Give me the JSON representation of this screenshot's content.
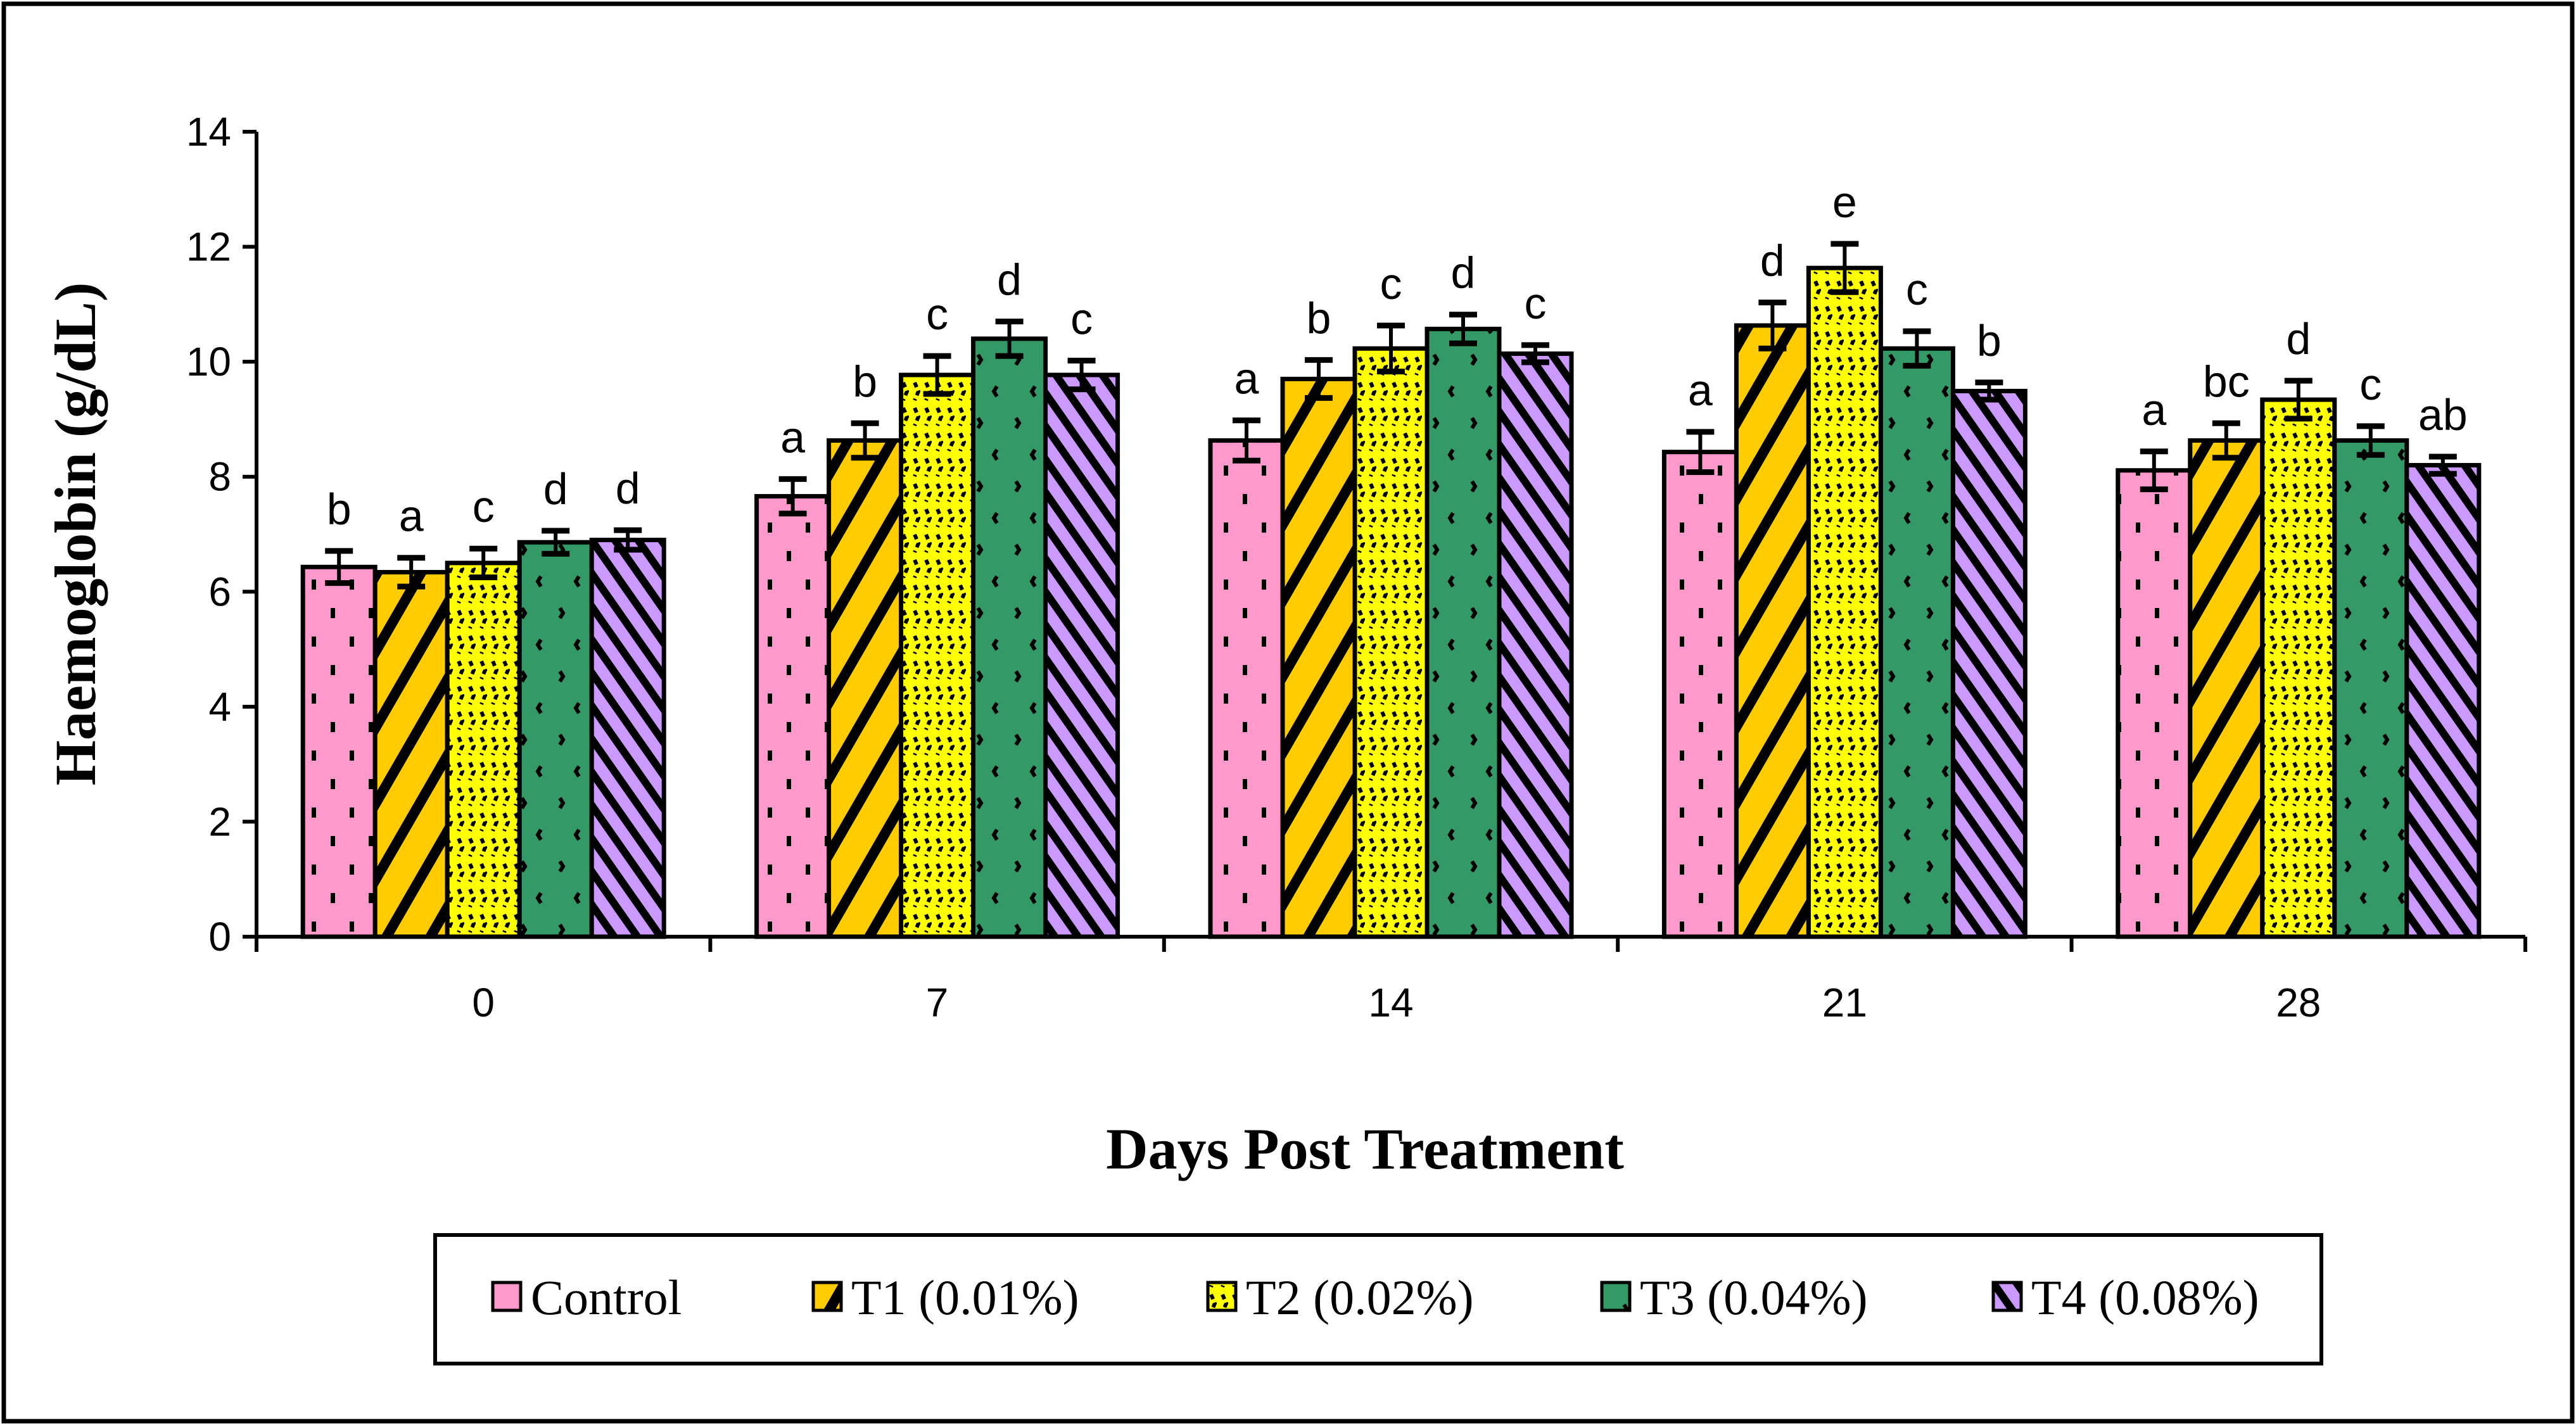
{
  "chart_data": {
    "type": "bar",
    "title": "",
    "xlabel": "Days Post Treatment",
    "ylabel": "Haemoglobin (g/dL)",
    "ylim": [
      0,
      14
    ],
    "yticks": [
      "0",
      "2",
      "4",
      "6",
      "8",
      "10",
      "12",
      "14"
    ],
    "categories": [
      "0",
      "7",
      "14",
      "21",
      "28"
    ],
    "legend_position": "bottom",
    "series": [
      {
        "name": "Control",
        "color": "#FF99CC",
        "values": [
          6.43,
          7.66,
          8.63,
          8.43,
          8.11
        ],
        "errors": [
          0.28,
          0.3,
          0.35,
          0.35,
          0.33
        ],
        "letters": [
          "b",
          "a",
          "a",
          "a",
          "a"
        ]
      },
      {
        "name": "T1 (0.01%)",
        "color": "#FFCC00",
        "values": [
          6.34,
          8.63,
          9.7,
          10.63,
          8.63
        ],
        "errors": [
          0.25,
          0.3,
          0.33,
          0.4,
          0.3
        ],
        "letters": [
          "a",
          "b",
          "b",
          "d",
          "bc"
        ]
      },
      {
        "name": "T2 (0.02%)",
        "color": "#FFFF00",
        "values": [
          6.5,
          9.77,
          10.23,
          11.63,
          9.34
        ],
        "errors": [
          0.25,
          0.33,
          0.4,
          0.42,
          0.33
        ],
        "letters": [
          "c",
          "c",
          "c",
          "e",
          "d"
        ]
      },
      {
        "name": "T3 (0.04%)",
        "color": "#339966",
        "values": [
          6.86,
          10.4,
          10.57,
          10.23,
          8.63
        ],
        "errors": [
          0.2,
          0.3,
          0.25,
          0.3,
          0.25
        ],
        "letters": [
          "d",
          "d",
          "d",
          "c",
          "c"
        ]
      },
      {
        "name": "T4 (0.08%)",
        "color": "#CC99FF",
        "values": [
          6.9,
          9.77,
          10.14,
          9.49,
          8.2
        ],
        "errors": [
          0.17,
          0.25,
          0.15,
          0.15,
          0.15
        ],
        "letters": [
          "d",
          "c",
          "c",
          "b",
          "ab"
        ]
      }
    ]
  }
}
